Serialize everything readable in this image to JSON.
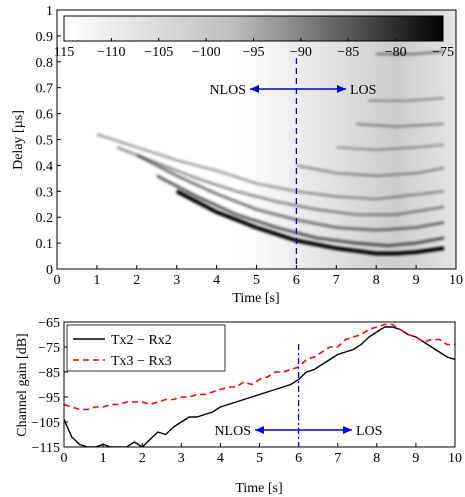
{
  "chart_data": [
    {
      "type": "heatmap",
      "xlabel": "Time [s]",
      "ylabel": "Delay [µs]",
      "xlim": [
        0,
        10
      ],
      "ylim": [
        0,
        1
      ],
      "xticks": [
        "0",
        "1",
        "2",
        "3",
        "4",
        "5",
        "6",
        "7",
        "8",
        "9",
        "10"
      ],
      "yticks": [
        "0",
        "0.1",
        "0.2",
        "0.3",
        "0.4",
        "0.5",
        "0.6",
        "0.7",
        "0.8",
        "0.9",
        "1"
      ],
      "colorbar": {
        "ticks": [
          "115",
          "−110",
          "−105",
          "−100",
          "−95",
          "−90",
          "−85",
          "−80",
          "−75"
        ],
        "range": [
          -115,
          -75
        ],
        "colors": [
          "#ffffff",
          "#000000"
        ]
      },
      "marker_time": 6,
      "annotations": {
        "left": "NLOS",
        "right": "LOS"
      },
      "paths": [
        {
          "x": [
            3.0,
            4.0,
            5.0,
            6.0,
            7.0,
            8.0,
            8.5,
            9.0,
            9.7
          ],
          "y": [
            0.3,
            0.22,
            0.16,
            0.11,
            0.08,
            0.06,
            0.06,
            0.065,
            0.08
          ],
          "intensity": 1.0
        },
        {
          "x": [
            2.5,
            3.5,
            4.5,
            5.5,
            6.5,
            7.5,
            8.3,
            9.0,
            9.7
          ],
          "y": [
            0.36,
            0.28,
            0.21,
            0.16,
            0.12,
            0.1,
            0.09,
            0.1,
            0.12
          ],
          "intensity": 0.6
        },
        {
          "x": [
            2.0,
            3.0,
            4.0,
            5.0,
            6.0,
            7.0,
            8.0,
            9.0,
            9.7
          ],
          "y": [
            0.44,
            0.36,
            0.29,
            0.23,
            0.19,
            0.16,
            0.15,
            0.16,
            0.18
          ],
          "intensity": 0.5
        },
        {
          "x": [
            1.5,
            2.5,
            3.5,
            4.5,
            5.5,
            6.5,
            7.5,
            8.5,
            9.7
          ],
          "y": [
            0.47,
            0.41,
            0.35,
            0.3,
            0.26,
            0.23,
            0.21,
            0.21,
            0.24
          ],
          "intensity": 0.4
        },
        {
          "x": [
            1.0,
            2.0,
            3.0,
            4.0,
            5.0,
            6.0,
            7.0,
            8.0,
            9.7
          ],
          "y": [
            0.52,
            0.47,
            0.42,
            0.38,
            0.33,
            0.3,
            0.28,
            0.27,
            0.3
          ],
          "intensity": 0.35
        },
        {
          "x": [
            6.0,
            7.0,
            8.0,
            9.0,
            9.7
          ],
          "y": [
            0.4,
            0.37,
            0.36,
            0.37,
            0.39
          ],
          "intensity": 0.35
        },
        {
          "x": [
            7.0,
            8.0,
            9.0,
            9.7
          ],
          "y": [
            0.47,
            0.46,
            0.47,
            0.48
          ],
          "intensity": 0.3
        },
        {
          "x": [
            7.5,
            8.5,
            9.7
          ],
          "y": [
            0.56,
            0.55,
            0.56
          ],
          "intensity": 0.35
        },
        {
          "x": [
            7.8,
            8.8,
            9.7
          ],
          "y": [
            0.65,
            0.65,
            0.66
          ],
          "intensity": 0.3
        },
        {
          "x": [
            8.0,
            9.0,
            9.7
          ],
          "y": [
            0.83,
            0.83,
            0.84
          ],
          "intensity": 0.4
        }
      ]
    },
    {
      "type": "line",
      "xlabel": "Time [s]",
      "ylabel": "Channel gain [dB]",
      "xlim": [
        0,
        10
      ],
      "ylim": [
        -115,
        -65
      ],
      "xticks": [
        "0",
        "1",
        "2",
        "3",
        "4",
        "5",
        "6",
        "7",
        "8",
        "9",
        "10"
      ],
      "yticks": [
        "−115",
        "−105",
        "−95",
        "−85",
        "−75",
        "−65"
      ],
      "marker_time": 6,
      "annotations": {
        "left": "NLOS",
        "right": "LOS"
      },
      "legend_position": "top-left",
      "series": [
        {
          "name": "Tx2 − Rx2",
          "color": "#000000",
          "dash": "solid",
          "x": [
            0,
            0.2,
            0.4,
            0.6,
            0.8,
            1.0,
            1.2,
            1.4,
            1.6,
            1.8,
            2.0,
            2.2,
            2.4,
            2.6,
            2.8,
            3.0,
            3.2,
            3.4,
            3.6,
            3.8,
            4.0,
            4.2,
            4.4,
            4.6,
            4.8,
            5.0,
            5.2,
            5.4,
            5.6,
            5.8,
            6.0,
            6.2,
            6.4,
            6.6,
            6.8,
            7.0,
            7.2,
            7.4,
            7.6,
            7.8,
            8.0,
            8.2,
            8.4,
            8.6,
            8.8,
            9.0,
            9.2,
            9.4,
            9.6,
            9.8,
            10.0
          ],
          "y": [
            -104,
            -111,
            -114,
            -115,
            -115,
            -114,
            -115,
            -115,
            -115,
            -113,
            -115,
            -112,
            -109,
            -110,
            -107,
            -105,
            -103,
            -103,
            -102,
            -101,
            -99,
            -98,
            -97,
            -96,
            -95,
            -94,
            -93,
            -92,
            -91,
            -90,
            -88,
            -85,
            -84,
            -82,
            -80,
            -78,
            -77,
            -76,
            -74,
            -71,
            -69,
            -67,
            -67,
            -68,
            -70,
            -71,
            -73,
            -75,
            -77,
            -79,
            -80
          ]
        },
        {
          "name": "Tx3 − Rx3",
          "color": "#ff0000",
          "dash": "dashed",
          "x": [
            0,
            0.2,
            0.4,
            0.6,
            0.8,
            1.0,
            1.2,
            1.4,
            1.6,
            1.8,
            2.0,
            2.2,
            2.4,
            2.6,
            2.8,
            3.0,
            3.2,
            3.4,
            3.6,
            3.8,
            4.0,
            4.2,
            4.4,
            4.6,
            4.8,
            5.0,
            5.2,
            5.4,
            5.6,
            5.8,
            6.0,
            6.2,
            6.4,
            6.6,
            6.8,
            7.0,
            7.2,
            7.4,
            7.6,
            7.8,
            8.0,
            8.2,
            8.4,
            8.6,
            8.8,
            9.0,
            9.2,
            9.4,
            9.6,
            9.8,
            10.0
          ],
          "y": [
            -98,
            -99,
            -100,
            -100,
            -99,
            -99,
            -98,
            -98,
            -97,
            -97,
            -97,
            -98,
            -97,
            -96,
            -96,
            -95,
            -95,
            -94,
            -94,
            -93,
            -92,
            -91,
            -91,
            -89,
            -90,
            -88,
            -87,
            -85,
            -85,
            -84,
            -83,
            -80,
            -79,
            -77,
            -75,
            -75,
            -72,
            -71,
            -70,
            -68,
            -67,
            -66,
            -66,
            -68,
            -70,
            -71,
            -73,
            -72,
            -72,
            -74,
            -74
          ]
        }
      ]
    }
  ]
}
